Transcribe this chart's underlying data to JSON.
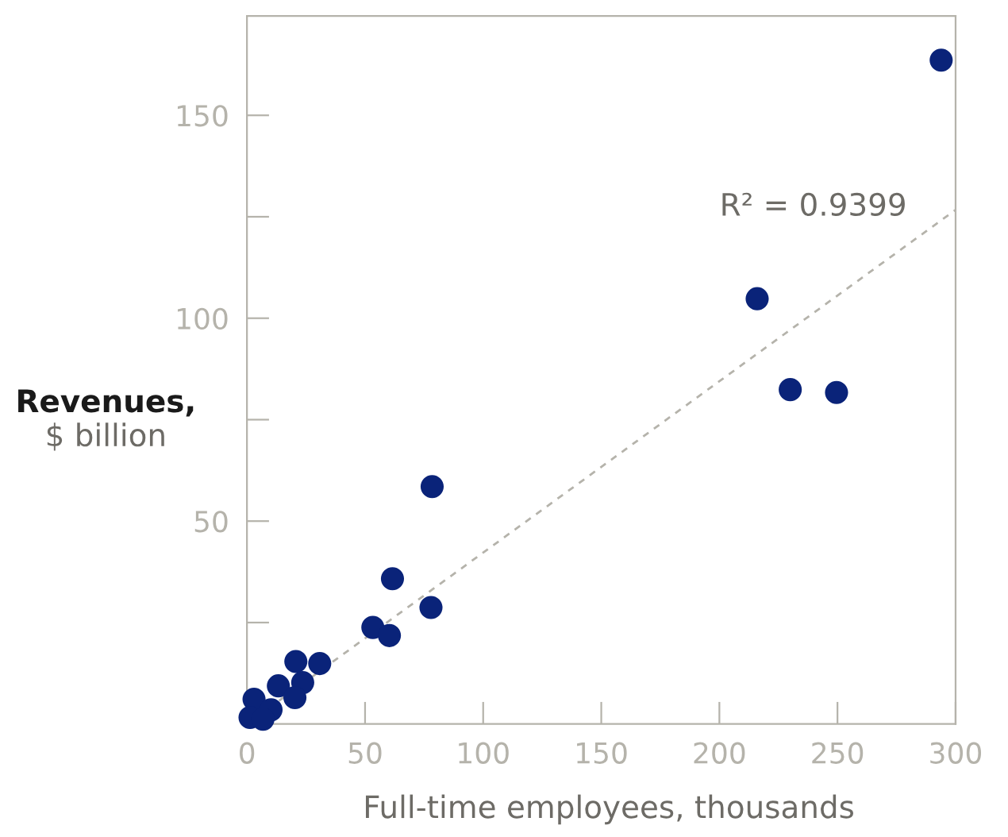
{
  "chart_data": {
    "type": "scatter",
    "xlabel": "Full-time employees, thousands",
    "ylabel": "Revenues, $ billion",
    "xlim": [
      0,
      300
    ],
    "ylim": [
      0,
      174.5
    ],
    "xticks": [
      0,
      50,
      100,
      150,
      200,
      250,
      300
    ],
    "yticks": [
      {
        "value": 25,
        "label": null
      },
      50,
      {
        "value": 75,
        "label": null
      },
      100,
      {
        "value": 125,
        "label": null
      },
      150
    ],
    "grid": false,
    "marker": "circle",
    "series": [
      {
        "color": "#0a2379",
        "x": [
          293.9,
          216,
          230,
          249.6,
          78.4,
          61.6,
          77.9,
          53.3,
          60.3,
          30.8,
          20.7,
          23.6,
          13.3,
          20.3,
          3.0,
          10.2,
          1.3,
          6.8
        ],
        "values": [
          163.6,
          104.8,
          82.4,
          81.7,
          58.5,
          35.8,
          28.7,
          23.8,
          21.8,
          14.9,
          15.4,
          10.2,
          9.4,
          6.5,
          6.1,
          3.5,
          1.6,
          1.2
        ]
      },
      {
        "type": "line",
        "color": "#b5b3ab",
        "line_style": "dashed",
        "marker": "none",
        "x": [
          0,
          300
        ],
        "values": [
          0,
          126.7
        ]
      }
    ],
    "annotations": [
      "R² = 0.9399"
    ]
  }
}
